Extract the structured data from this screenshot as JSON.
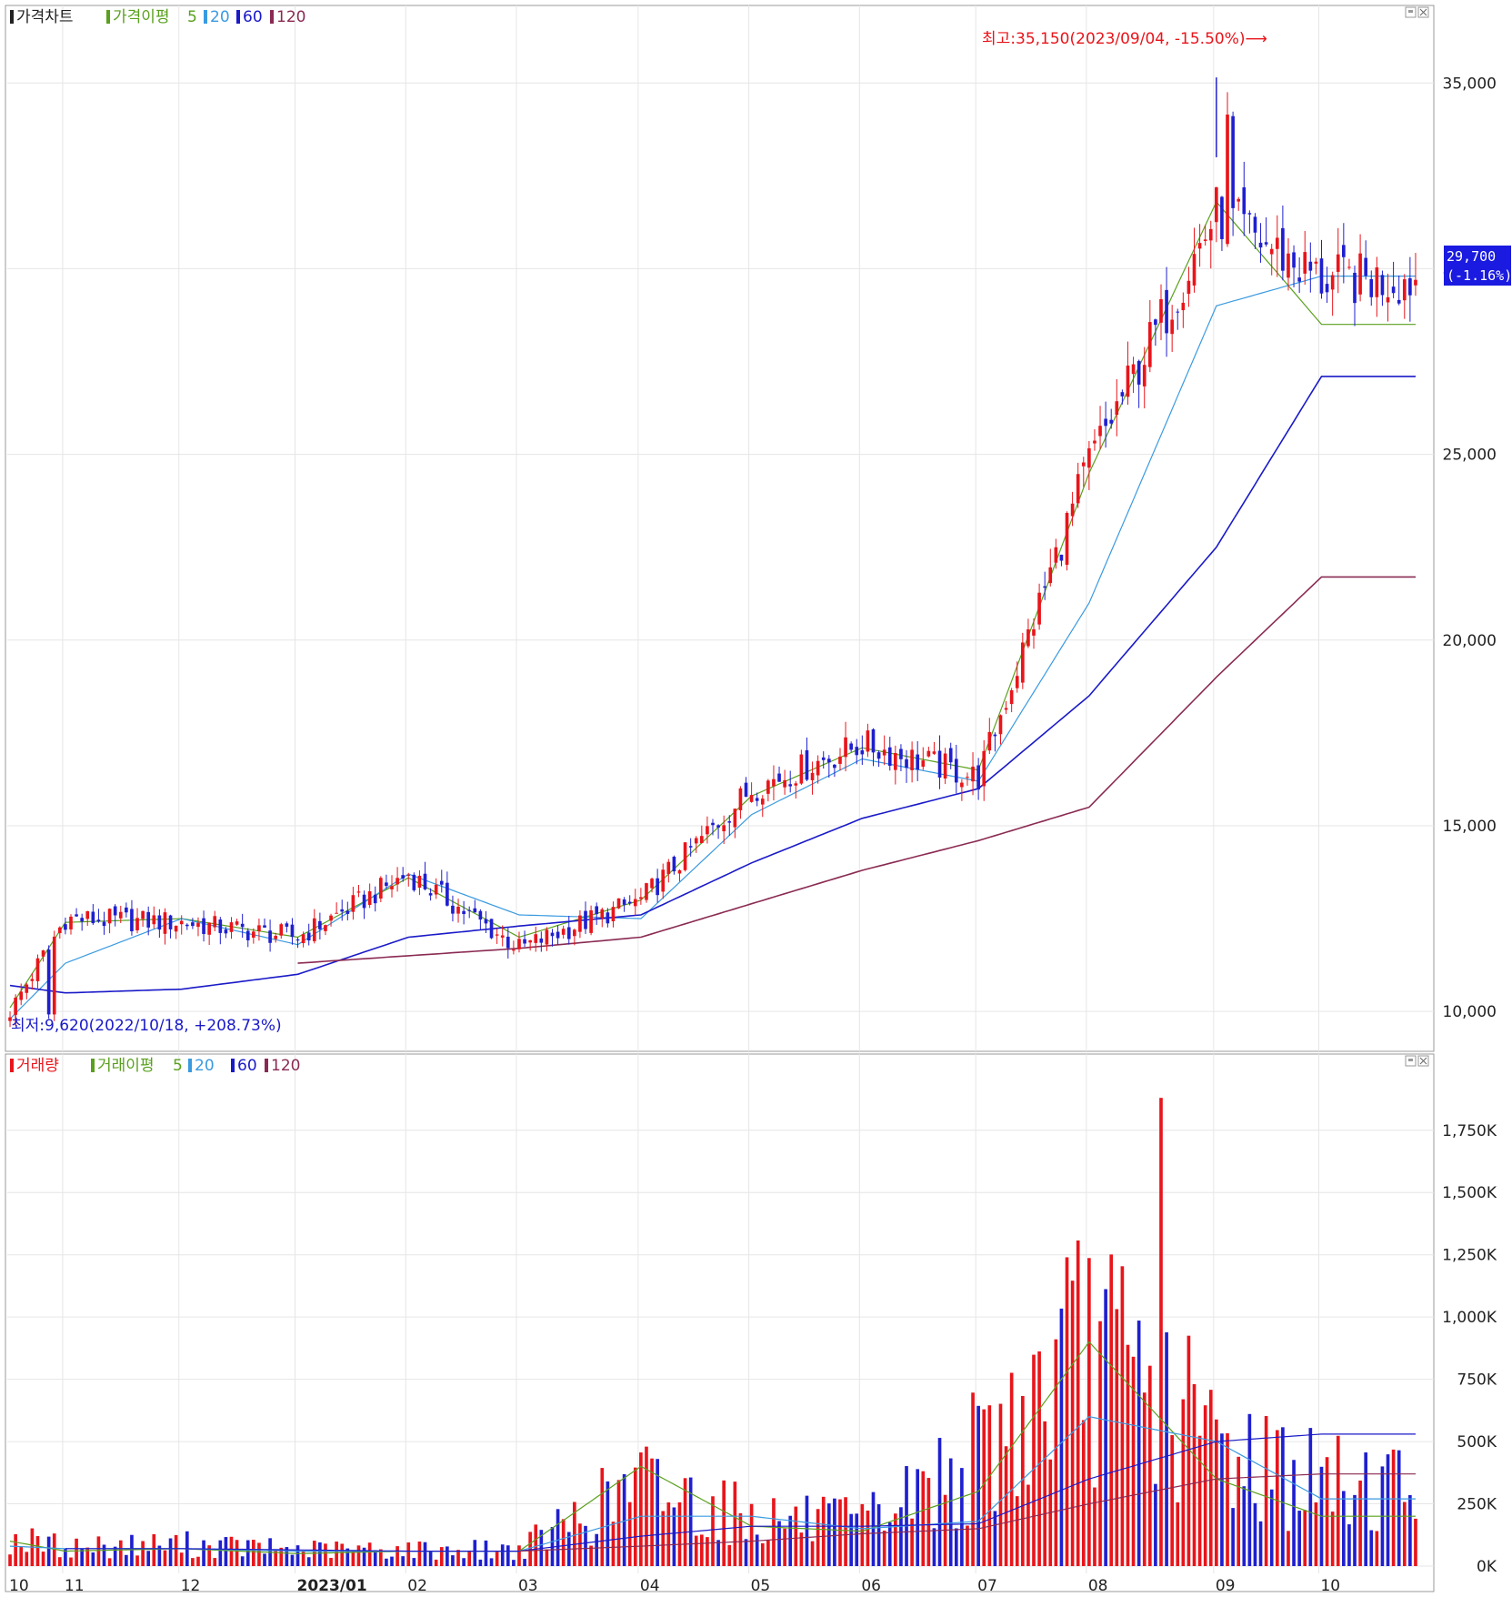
{
  "price_panel": {
    "legend": {
      "title": "가격차트",
      "ma_label": "가격이평",
      "ma_periods": [
        "5",
        "20",
        "60",
        "120"
      ]
    },
    "y_ticks": [
      "35,000",
      "30,000",
      "25,000",
      "20,000",
      "15,000",
      "10,000"
    ],
    "high_annotation": "최고:35,150(2023/09/04, -15.50%)⟶",
    "low_annotation": "최저:9,620(2022/10/18, +208.73%)",
    "current_price": "29,700",
    "current_change": "(-1.16%)"
  },
  "volume_panel": {
    "legend": {
      "title": "거래량",
      "ma_label": "거래이평",
      "ma_periods": [
        "5",
        "20",
        "60",
        "120"
      ]
    },
    "y_ticks": [
      "1,750K",
      "1,500K",
      "1,250K",
      "1,000K",
      "750K",
      "500K",
      "250K",
      "0K"
    ]
  },
  "x_ticks": [
    "10",
    "11",
    "12",
    "2023/01",
    "02",
    "03",
    "04",
    "05",
    "06",
    "07",
    "08",
    "09",
    "10"
  ],
  "colors": {
    "up": "#e8151b",
    "down": "#1f1fcf",
    "ma5": "#5aa01e",
    "ma20": "#3a9ae0",
    "ma60": "#1a1ac8",
    "ma120": "#8a2a52",
    "grid": "#e6e6e6",
    "annotation_high": "#e8151b",
    "annotation_low": "#1a1ac8",
    "price_box": "#1a1ae0"
  },
  "chart_data": [
    {
      "type": "candlestick",
      "title": "가격차트",
      "ylim": [
        9000,
        36500
      ],
      "x": [
        "2022/10",
        "2022/11",
        "2022/12",
        "2023/01",
        "2023/02",
        "2023/03",
        "2023/04",
        "2023/05",
        "2023/06",
        "2023/07",
        "2023/08",
        "2023/09",
        "2023/10"
      ],
      "close_approx": [
        10000,
        12500,
        12400,
        12000,
        13700,
        11700,
        13000,
        16000,
        17200,
        16300,
        24800,
        31500,
        29700
      ],
      "ma_series": [
        {
          "name": "5",
          "values": [
            10100,
            12400,
            12500,
            12000,
            13600,
            12000,
            13000,
            15800,
            17100,
            16500,
            24500,
            31800,
            28500
          ]
        },
        {
          "name": "20",
          "values": [
            9800,
            11300,
            12500,
            11800,
            13700,
            12600,
            12500,
            15300,
            16800,
            16200,
            21000,
            29000,
            29800
          ]
        },
        {
          "name": "60",
          "values": [
            10700,
            10500,
            10600,
            11000,
            12000,
            12300,
            12600,
            14000,
            15200,
            16000,
            18500,
            22500,
            27100
          ]
        },
        {
          "name": "120",
          "values": [
            null,
            null,
            null,
            11300,
            11500,
            11700,
            12000,
            12900,
            13800,
            14600,
            15500,
            19000,
            21700
          ]
        }
      ],
      "max": {
        "value": 35150,
        "date": "2023/09/04"
      },
      "min": {
        "value": 9620,
        "date": "2022/10/18"
      },
      "last": 29700
    },
    {
      "type": "bar",
      "title": "거래량",
      "ylim": [
        0,
        1950000
      ],
      "categories": [
        "2022/10",
        "2022/11",
        "2022/12",
        "2023/01",
        "2023/02",
        "2023/03",
        "2023/04",
        "2023/05",
        "2023/06",
        "2023/07",
        "2023/08",
        "2023/09",
        "2023/10"
      ],
      "values_approx": [
        100000,
        70000,
        80000,
        60000,
        60000,
        60000,
        300000,
        180000,
        150000,
        400000,
        800000,
        450000,
        300000
      ],
      "ma_series": [
        {
          "name": "5",
          "values": [
            100000,
            60000,
            70000,
            50000,
            60000,
            60000,
            400000,
            160000,
            140000,
            300000,
            900000,
            350000,
            200000
          ]
        },
        {
          "name": "20",
          "values": [
            80000,
            70000,
            70000,
            60000,
            60000,
            60000,
            200000,
            200000,
            150000,
            180000,
            600000,
            500000,
            270000
          ]
        },
        {
          "name": "60",
          "values": [
            null,
            70000,
            70000,
            65000,
            60000,
            60000,
            120000,
            160000,
            160000,
            170000,
            350000,
            500000,
            530000
          ]
        },
        {
          "name": "120",
          "values": [
            null,
            null,
            null,
            null,
            null,
            60000,
            80000,
            100000,
            130000,
            150000,
            250000,
            350000,
            370000
          ]
        }
      ],
      "max": {
        "value": 1880000,
        "date": "2023/08"
      }
    }
  ]
}
